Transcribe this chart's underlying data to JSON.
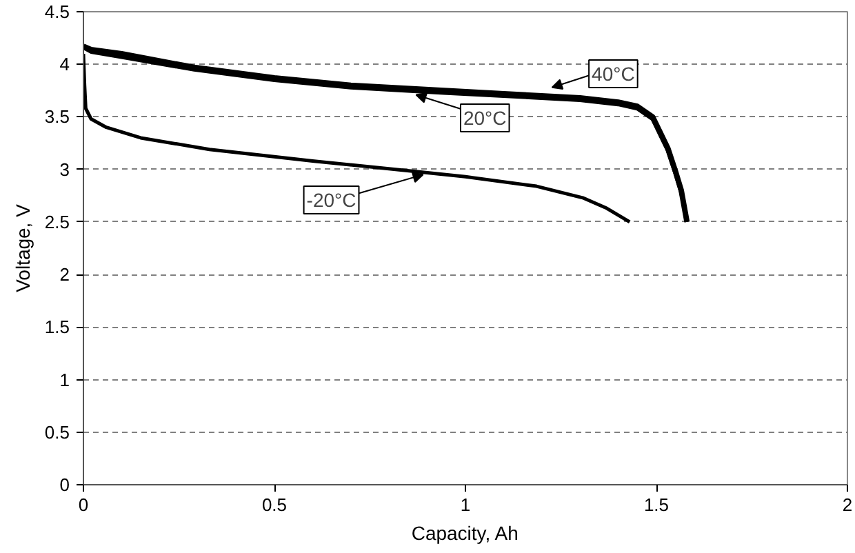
{
  "chart_data": {
    "type": "line",
    "xlabel": "Capacity, Ah",
    "ylabel": "Voltage, V",
    "xlim": [
      0,
      2
    ],
    "ylim": [
      0,
      4.5
    ],
    "xticks": [
      0,
      0.5,
      1,
      1.5,
      2
    ],
    "yticks": [
      0,
      0.5,
      1,
      1.5,
      2,
      2.5,
      3,
      3.5,
      4,
      4.5
    ],
    "grid": "y",
    "line_style": "solid",
    "marker": "none",
    "series": [
      {
        "color": "#000000",
        "x": [
          0,
          0.02,
          0.1,
          0.29,
          0.5,
          0.7,
          0.944,
          1.1,
          1.3,
          1.4,
          1.45,
          1.49,
          1.51,
          1.53,
          1.55,
          1.565,
          1.575,
          1.58
        ],
        "values": [
          4.17,
          4.14,
          4.1,
          3.97,
          3.87,
          3.8,
          3.75,
          3.72,
          3.68,
          3.64,
          3.6,
          3.5,
          3.35,
          3.2,
          2.98,
          2.8,
          2.6,
          2.5
        ]
      },
      {
        "color": "#000000",
        "x": [
          0,
          0.02,
          0.1,
          0.29,
          0.5,
          0.7,
          0.944,
          1.1,
          1.3,
          1.4,
          1.45,
          1.49,
          1.51,
          1.53,
          1.55,
          1.565,
          1.575,
          1.58
        ],
        "values": [
          4.16,
          4.12,
          4.07,
          3.95,
          3.85,
          3.78,
          3.73,
          3.7,
          3.66,
          3.62,
          3.58,
          3.48,
          3.33,
          3.18,
          2.96,
          2.78,
          2.6,
          2.5
        ]
      },
      {
        "color": "#000000",
        "x": [
          0,
          0.003,
          0.006,
          0.02,
          0.06,
          0.15,
          0.33,
          0.6,
          0.87,
          1.0,
          1.186,
          1.307,
          1.37,
          1.43
        ],
        "values": [
          4.1,
          3.8,
          3.58,
          3.48,
          3.4,
          3.3,
          3.19,
          3.08,
          2.98,
          2.93,
          2.84,
          2.73,
          2.63,
          2.5
        ]
      }
    ],
    "annotations": [
      {
        "text": "40°C",
        "x": 1.227,
        "y": 3.78
      },
      {
        "text": "20°C",
        "x": 0.871,
        "y": 3.71
      },
      {
        "text": "-20°C",
        "x": 0.889,
        "y": 2.95
      }
    ]
  }
}
